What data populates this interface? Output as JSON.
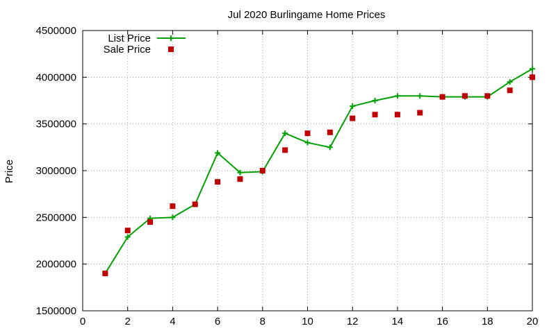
{
  "chart_data": {
    "type": "scatter",
    "title": "Jul 2020 Burlingame Home Prices",
    "xlabel": "",
    "ylabel": "Price",
    "xlim": [
      0,
      20
    ],
    "ylim": [
      1500000,
      4500000
    ],
    "xticks": [
      0,
      2,
      4,
      6,
      8,
      10,
      12,
      14,
      16,
      18,
      20
    ],
    "yticks": [
      1500000,
      2000000,
      2500000,
      3000000,
      3500000,
      4000000,
      4500000
    ],
    "grid": true,
    "legend_position": "top-left",
    "series": [
      {
        "name": "List Price",
        "style": "linespoints",
        "color": "#00a000",
        "x": [
          1,
          2,
          3,
          4,
          5,
          6,
          7,
          8,
          9,
          10,
          11,
          12,
          13,
          14,
          15,
          16,
          17,
          18,
          19,
          20
        ],
        "y": [
          1900000,
          2290000,
          2490000,
          2500000,
          2640000,
          3190000,
          2980000,
          2990000,
          3400000,
          3300000,
          3250000,
          3690000,
          3750000,
          3800000,
          3800000,
          3790000,
          3790000,
          3790000,
          3950000,
          4090000
        ]
      },
      {
        "name": "Sale Price",
        "style": "points",
        "color": "#c00000",
        "x": [
          1,
          2,
          3,
          4,
          5,
          6,
          7,
          8,
          9,
          10,
          11,
          12,
          13,
          14,
          15,
          16,
          17,
          18,
          19,
          20
        ],
        "y": [
          1900000,
          2360000,
          2450000,
          2620000,
          2640000,
          2880000,
          2910000,
          3000000,
          3220000,
          3400000,
          3410000,
          3560000,
          3600000,
          3600000,
          3620000,
          3790000,
          3800000,
          3800000,
          3860000,
          4000000
        ]
      }
    ]
  }
}
